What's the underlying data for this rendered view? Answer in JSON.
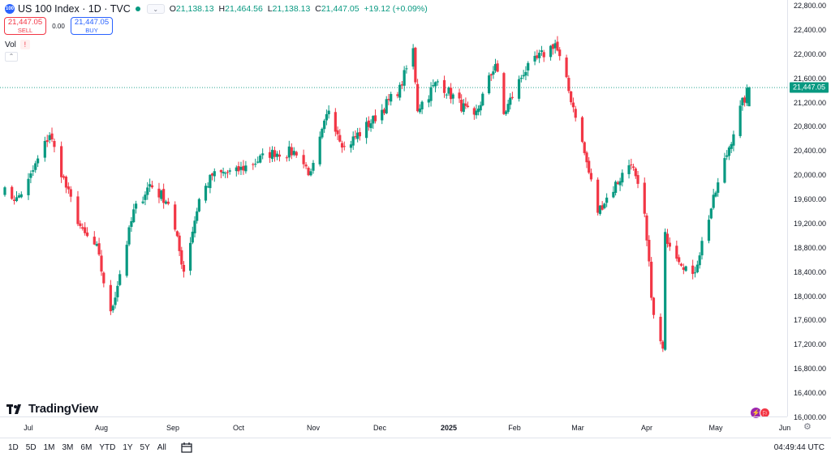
{
  "header": {
    "badge": "100",
    "title": "US 100 Index · 1D · TVC",
    "ohlc": [
      {
        "label": "O",
        "value": "21,138.13"
      },
      {
        "label": "H",
        "value": "21,464.56"
      },
      {
        "label": "L",
        "value": "21,138.13"
      },
      {
        "label": "C",
        "value": "21,447.05"
      }
    ],
    "change": "+19.12 (+0.09%)"
  },
  "trade": {
    "sell_price": "21,447.05",
    "sell_label": "SELL",
    "spread": "0.00",
    "buy_price": "21,447.05",
    "buy_label": "BUY"
  },
  "volume": {
    "label": "Vol",
    "warning": "!"
  },
  "price_axis": {
    "ticks": [
      "22,800.00",
      "22,400.00",
      "22,000.00",
      "21,600.00",
      "21,200.00",
      "20,800.00",
      "20,400.00",
      "20,000.00",
      "19,600.00",
      "19,200.00",
      "18,800.00",
      "18,400.00",
      "18,000.00",
      "17,600.00",
      "17,200.00",
      "16,800.00",
      "16,400.00",
      "16,000.00"
    ],
    "last_price": "21,447.05"
  },
  "time_axis": {
    "ticks": [
      {
        "label": "Jul",
        "bold": false
      },
      {
        "label": "Aug",
        "bold": false
      },
      {
        "label": "Sep",
        "bold": false
      },
      {
        "label": "Oct",
        "bold": false
      },
      {
        "label": "Nov",
        "bold": false
      },
      {
        "label": "Dec",
        "bold": false
      },
      {
        "label": "2025",
        "bold": true
      },
      {
        "label": "Feb",
        "bold": false
      },
      {
        "label": "Mar",
        "bold": false
      },
      {
        "label": "Apr",
        "bold": false
      },
      {
        "label": "May",
        "bold": false
      },
      {
        "label": "Jun",
        "bold": false
      }
    ]
  },
  "toolbar": {
    "ranges": [
      "1D",
      "5D",
      "1M",
      "3M",
      "6M",
      "YTD",
      "1Y",
      "5Y",
      "All"
    ],
    "clock": "04:49:44 UTC"
  },
  "branding": {
    "logo_text": "TradingView"
  },
  "colors": {
    "up": "#089981",
    "down": "#f23645",
    "accent": "#2962ff"
  },
  "chart_data": {
    "type": "candlestick",
    "title": "US 100 Index · 1D · TVC",
    "ylim": [
      16000,
      22900
    ],
    "anchors": [
      [
        "Jun 20 2024",
        19750
      ],
      [
        "Jun 26 2024",
        19600
      ],
      [
        "Jul 1 2024",
        19900
      ],
      [
        "Jul 10 2024",
        20680
      ],
      [
        "Jul 17 2024",
        19800
      ],
      [
        "Jul 24 2024",
        19050
      ],
      [
        "Jul 30 2024",
        18800
      ],
      [
        "Aug 5 2024",
        17700
      ],
      [
        "Aug 15 2024",
        19400
      ],
      [
        "Aug 22 2024",
        19850
      ],
      [
        "Aug 30 2024",
        19550
      ],
      [
        "Sep 6 2024",
        18420
      ],
      [
        "Sep 13 2024",
        19600
      ],
      [
        "Sep 19 2024",
        20000
      ],
      [
        "Sep 30 2024",
        20060
      ],
      [
        "Oct 15 2024",
        20370
      ],
      [
        "Oct 25 2024",
        20380
      ],
      [
        "Oct 31 2024",
        20000
      ],
      [
        "Nov 8 2024",
        21100
      ],
      [
        "Nov 15 2024",
        20450
      ],
      [
        "Nov 29 2024",
        20950
      ],
      [
        "Dec 10 2024",
        21430
      ],
      [
        "Dec 16 2024",
        22070
      ],
      [
        "Dec 18 2024",
        21100
      ],
      [
        "Dec 27 2024",
        21550
      ],
      [
        "Jan 13 2025",
        20930
      ],
      [
        "Jan 23 2025",
        21850
      ],
      [
        "Jan 27 2025",
        21000
      ],
      [
        "Feb 5 2025",
        21700
      ],
      [
        "Feb 19 2025",
        22180
      ],
      [
        "Feb 28 2025",
        21000
      ],
      [
        "Mar 10 2025",
        19400
      ],
      [
        "Mar 25 2025",
        20230
      ],
      [
        "Mar 31 2025",
        19300
      ],
      [
        "Apr 4 2025",
        17650
      ],
      [
        "Apr 8 2025",
        17100
      ],
      [
        "Apr 9 2025",
        19000
      ],
      [
        "Apr 21 2025",
        18300
      ],
      [
        "Apr 30 2025",
        19600
      ],
      [
        "May 12 2025",
        21100
      ],
      [
        "May 16 2025",
        21450
      ]
    ],
    "last": {
      "open": 21138.13,
      "high": 21464.56,
      "low": 21138.13,
      "close": 21447.05,
      "change": "+19.12 (+0.09%)"
    }
  }
}
